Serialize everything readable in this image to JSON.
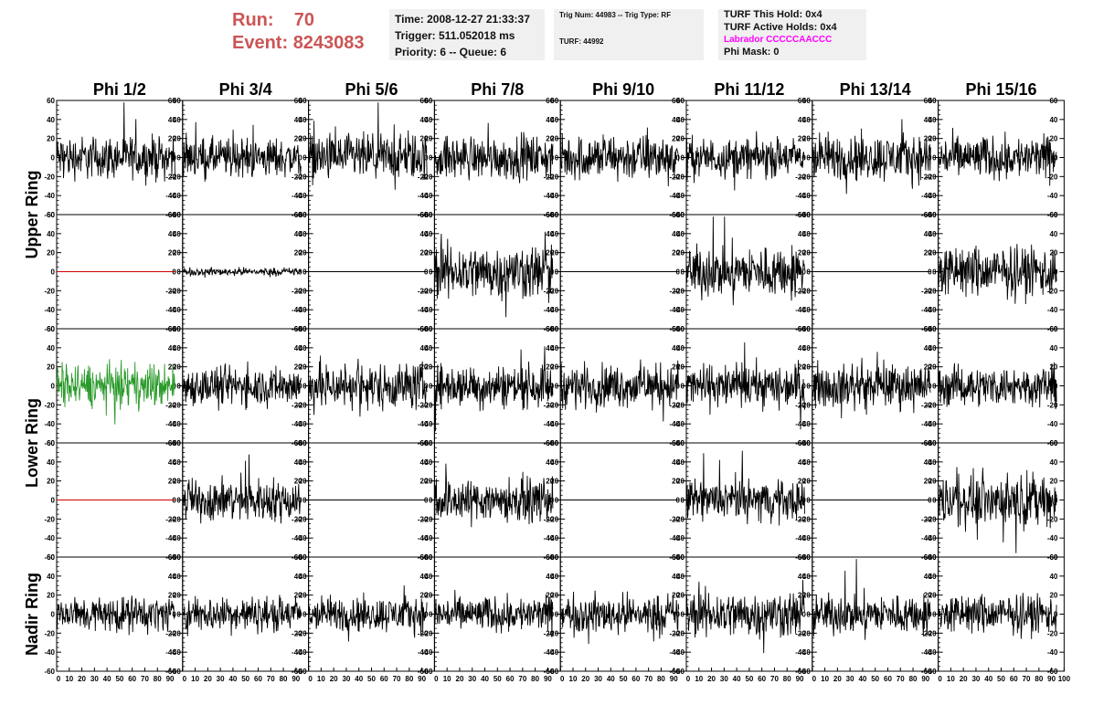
{
  "header": {
    "run_label": "Run:",
    "run_value": "70",
    "event_label": "Event:",
    "event_value": "8243083",
    "time": "Time: 2008-12-27 21:33:37",
    "trigger": "Trigger: 511.052018 ms",
    "priority": "Priority: 6 -- Queue: 6",
    "trig_num": "Trig Num: 44983 -- Trig Type: RF",
    "turf": "TURF: 44992",
    "turf_this_hold": "TURF This Hold: 0x4",
    "turf_active_holds": "TURF Active Holds: 0x4",
    "labrador": "Labrador CCCCCAACCC",
    "phi_mask": "Phi Mask: 0"
  },
  "colors": {
    "header_red": "#cc5555",
    "labrador_magenta": "#ff00ff",
    "trace_default": "#000000",
    "trace_red": "#cc0000",
    "trace_green": "#2a9a2a",
    "info_background": "#f0f0f0"
  },
  "chart_data": {
    "type": "line",
    "columns": [
      "Phi 1/2",
      "Phi 3/4",
      "Phi 5/6",
      "Phi 7/8",
      "Phi 9/10",
      "Phi 11/12",
      "Phi 13/14",
      "Phi 15/16"
    ],
    "row_labels": [
      {
        "label": "Upper Ring",
        "rows": [
          0,
          1
        ]
      },
      {
        "label": "Lower Ring",
        "rows": [
          2,
          3
        ]
      },
      {
        "label": "Nadir Ring",
        "rows": [
          4
        ]
      }
    ],
    "xlim": [
      0,
      100
    ],
    "ylim": [
      -60,
      60
    ],
    "x_tick_labels": [
      "0",
      "10",
      "20",
      "30",
      "40",
      "50",
      "60",
      "70",
      "80",
      "90",
      "100"
    ],
    "y_tick_labels": [
      "-60",
      "-40",
      "-20",
      "0",
      "20",
      "40",
      "60"
    ],
    "trace_x_range": [
      0,
      94
    ],
    "panels": [
      [
        {
          "amp": 11,
          "color": "default"
        },
        {
          "amp": 10,
          "color": "default"
        },
        {
          "amp": 12,
          "color": "default"
        },
        {
          "amp": 11,
          "color": "default"
        },
        {
          "amp": 12,
          "color": "default"
        },
        {
          "amp": 10,
          "color": "default"
        },
        {
          "amp": 12,
          "color": "default"
        },
        {
          "amp": 11,
          "color": "default"
        }
      ],
      [
        {
          "amp": 0,
          "color": "red"
        },
        {
          "amp": 2,
          "color": "default"
        },
        {
          "amp": 0,
          "color": "default"
        },
        {
          "amp": 14,
          "color": "default"
        },
        {
          "amp": 0,
          "color": "default"
        },
        {
          "amp": 13,
          "color": "default"
        },
        {
          "amp": 0,
          "color": "default"
        },
        {
          "amp": 13,
          "color": "default"
        }
      ],
      [
        {
          "amp": 11,
          "color": "green"
        },
        {
          "amp": 10,
          "color": "default"
        },
        {
          "amp": 12,
          "color": "default"
        },
        {
          "amp": 11,
          "color": "default"
        },
        {
          "amp": 11,
          "color": "default"
        },
        {
          "amp": 11,
          "color": "default"
        },
        {
          "amp": 11,
          "color": "default"
        },
        {
          "amp": 10,
          "color": "default"
        }
      ],
      [
        {
          "amp": 0,
          "color": "red"
        },
        {
          "amp": 11,
          "color": "default"
        },
        {
          "amp": 0,
          "color": "default"
        },
        {
          "amp": 11,
          "color": "default"
        },
        {
          "amp": 0,
          "color": "default"
        },
        {
          "amp": 10,
          "color": "default"
        },
        {
          "amp": 0,
          "color": "default"
        },
        {
          "amp": 13,
          "color": "default"
        }
      ],
      [
        {
          "amp": 9,
          "color": "default"
        },
        {
          "amp": 9,
          "color": "default"
        },
        {
          "amp": 9,
          "color": "default"
        },
        {
          "amp": 9,
          "color": "default"
        },
        {
          "amp": 10,
          "color": "default"
        },
        {
          "amp": 12,
          "color": "default"
        },
        {
          "amp": 10,
          "color": "default"
        },
        {
          "amp": 10,
          "color": "default"
        }
      ]
    ]
  }
}
